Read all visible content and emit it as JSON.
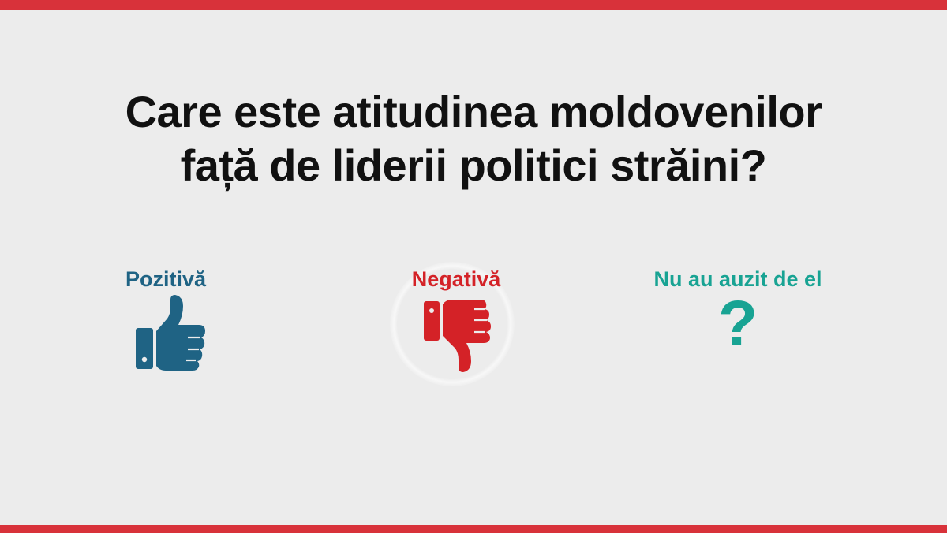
{
  "title": {
    "line1": "Care este atitudinea moldovenilor",
    "line2": "față de liderii politici străini?"
  },
  "options": [
    {
      "label": "Pozitivă",
      "icon": "thumbs-up-icon",
      "color": "#1f6384"
    },
    {
      "label": "Negativă",
      "icon": "thumbs-down-icon",
      "color": "#d42227"
    },
    {
      "label": "Nu au auzit de el",
      "icon": "question-mark-icon",
      "color": "#18a393",
      "glyph": "?"
    }
  ],
  "colors": {
    "accent_bar": "#d8323a",
    "background": "#ececec",
    "title": "#111111"
  }
}
